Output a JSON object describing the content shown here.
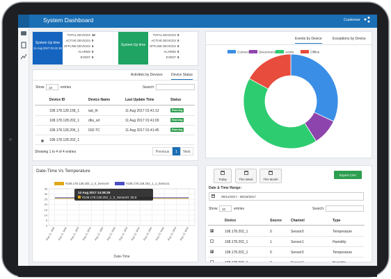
{
  "header": {
    "title": "System Dashboard",
    "user": "Customer"
  },
  "stats": [
    {
      "label": "System Up time",
      "time": "11 Aug 2017 01:41:18",
      "color": "#1565c0",
      "items": [
        {
          "label": "TOTAL DEVICES",
          "value": 10
        },
        {
          "label": "ACTIVE DEVICES",
          "value": 0
        },
        {
          "label": "OFFLINE DEVICES",
          "value": 4
        },
        {
          "label": "ALARMS",
          "value": 0
        },
        {
          "label": "EVENT",
          "value": 0
        }
      ]
    },
    {
      "label": "System Up time",
      "color": "#1fa463",
      "items": [
        {
          "label": "TOTAL DEVICES",
          "value": 0
        },
        {
          "label": "ACTIVE DEVICES",
          "value": 0
        },
        {
          "label": "OFFLINE DEVICES",
          "value": 0
        },
        {
          "label": "ALARMS",
          "value": 0
        },
        {
          "label": "EVENT",
          "value": 0
        }
      ]
    }
  ],
  "pie_tabs": [
    "Events by Device",
    "Exceptions by Device"
  ],
  "device_status": {
    "tabs": [
      "Activities by Devices",
      "Device Status"
    ],
    "show": "Show",
    "length": 10,
    "entries": "entries",
    "search": "Search:",
    "columns": [
      "Device ID",
      "Device Name",
      "Last Update Time",
      "Status"
    ],
    "rows": [
      [
        "108.178.128.158_1",
        "iad_th",
        "11 Aug 2017 01:41:12",
        "Running"
      ],
      [
        "108.178.128.202_1",
        "dbs_sd",
        "11 Aug 2017 01:41:09",
        "Running"
      ],
      [
        "108.178.128.206_1",
        "ISD-TC",
        "11 Aug 2017 01:41:45",
        "Running"
      ],
      [
        "108.178.128.202_1"
      ]
    ],
    "info": "Showing 1 to 4 of 4 entries",
    "pager": [
      "Previous",
      1,
      "Next"
    ]
  },
  "chart_data": [
    {
      "type": "line",
      "title": "Date-Time Vs Temperature",
      "x_label": "Date-Time",
      "categories": [
        "Aug 11, 3AM",
        "Aug 11, 9AM",
        "Aug 11, 3PM",
        "Aug 11, 9PM",
        "Aug 12, 3AM",
        "Aug 12, 9AM",
        "Aug 12, 3PM",
        "Aug 12, 9PM",
        "Aug 13, 3AM",
        "Aug 13, 9AM",
        "Aug 13, 3PM",
        "Aug 13, 9PM"
      ],
      "series": [
        {
          "name": "#108.178.128.202_1_0_Sensor0",
          "color": "#e0a817",
          "values": [
            25.8,
            25.8,
            25.8,
            25.8,
            25.8,
            25.8,
            25.8,
            25.8,
            25.8,
            25.8,
            25.8,
            25.8
          ]
        },
        {
          "name": "#108.178.128.202_1_1_Sensor1",
          "color": "#4a4fc4",
          "values": [
            26.5,
            26.5,
            26.5,
            26.5,
            26.5,
            26.5,
            26.5,
            26.5,
            26.5,
            26.5,
            26.5,
            26.5
          ]
        }
      ],
      "ylim": [
        0,
        35
      ],
      "yticks": [
        0,
        5,
        10,
        15,
        20,
        25,
        30,
        35
      ],
      "grid": true,
      "tooltip": {
        "title": "13 Aug 2017 14:38:29",
        "text": "#108.178.128.202_1_0_Sensor0: 25.8"
      }
    },
    {
      "type": "pie",
      "categories": [
        "Connected",
        "Disconnected",
        "Active",
        "Offline"
      ],
      "colors": [
        "#3a8ee6",
        "#8e44ad",
        "#2ecc71",
        "#e74c3c"
      ],
      "values": [
        32,
        9,
        42,
        17
      ],
      "legend": "top"
    }
  ],
  "sensors": {
    "buttons": [
      "Today",
      "This Week",
      "This Month"
    ],
    "export": "Export CSV",
    "range_label": "Date & Time Range:",
    "range": "08/11/2017 - 08/16/2017",
    "show": "Show",
    "length": 10,
    "entries": "entries",
    "search": "Search:",
    "columns": [
      "Device",
      "Source",
      "Channel",
      "Type"
    ],
    "rows": [
      {
        "checked": true,
        "cells": [
          "108.178.202_1",
          0,
          "Sensor0",
          "Temperature"
        ]
      },
      {
        "checked": false,
        "cells": [
          "108.178.202_1",
          1,
          "Sensor1",
          "Humidity"
        ]
      },
      {
        "checked": true,
        "cells": [
          "108.178.202_1",
          0,
          "Sensor0",
          "Temperature"
        ]
      },
      {
        "checked": false,
        "cells": [
          "108.178.202_1",
          1,
          "Sensor1",
          "Humidity"
        ]
      }
    ]
  }
}
